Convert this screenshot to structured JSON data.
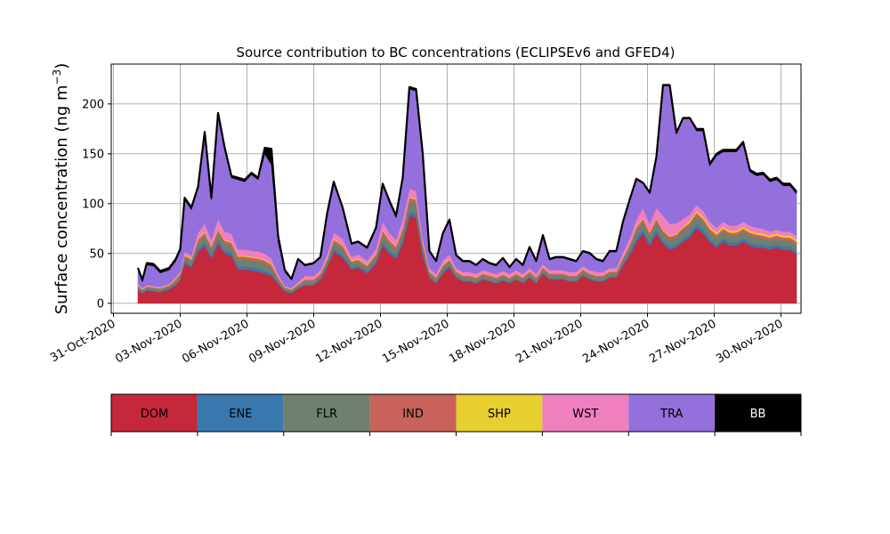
{
  "chart_data": {
    "type": "area",
    "title": "Source contribution to BC concentrations (ECLIPSEv6 and GFED4)",
    "ylabel": "Surface concentration (ng m",
    "ylabel_sup": "−3",
    "ylabel_close": ")",
    "xlabel": "",
    "ylim": [
      -10,
      240
    ],
    "xlim": [
      -0.1,
      30.9
    ],
    "grid": true,
    "yticks": [
      0,
      50,
      100,
      150,
      200
    ],
    "xticks": [
      {
        "pos": 0,
        "label": "31-Oct-2020"
      },
      {
        "pos": 3,
        "label": "03-Nov-2020"
      },
      {
        "pos": 6,
        "label": "06-Nov-2020"
      },
      {
        "pos": 9,
        "label": "09-Nov-2020"
      },
      {
        "pos": 12,
        "label": "12-Nov-2020"
      },
      {
        "pos": 15,
        "label": "15-Nov-2020"
      },
      {
        "pos": 18,
        "label": "18-Nov-2020"
      },
      {
        "pos": 21,
        "label": "21-Nov-2020"
      },
      {
        "pos": 24,
        "label": "24-Nov-2020"
      },
      {
        "pos": 27,
        "label": "27-Nov-2020"
      },
      {
        "pos": 30,
        "label": "30-Nov-2020"
      }
    ],
    "x": [
      1.1,
      1.3,
      1.5,
      1.8,
      2.1,
      2.5,
      2.8,
      3.0,
      3.2,
      3.5,
      3.8,
      4.1,
      4.4,
      4.7,
      5.0,
      5.3,
      5.6,
      5.9,
      6.2,
      6.5,
      6.8,
      7.1,
      7.4,
      7.7,
      8.0,
      8.3,
      8.6,
      9.0,
      9.3,
      9.6,
      9.9,
      10.3,
      10.7,
      11.0,
      11.4,
      11.8,
      12.1,
      12.4,
      12.7,
      13.0,
      13.3,
      13.6,
      13.9,
      14.2,
      14.5,
      14.8,
      15.1,
      15.4,
      15.7,
      16.0,
      16.3,
      16.6,
      16.9,
      17.2,
      17.5,
      17.8,
      18.1,
      18.4,
      18.7,
      19.0,
      19.3,
      19.6,
      19.9,
      20.2,
      20.5,
      20.8,
      21.1,
      21.4,
      21.7,
      22.0,
      22.3,
      22.6,
      22.9,
      23.2,
      23.5,
      23.8,
      24.1,
      24.4,
      24.7,
      25.0,
      25.3,
      25.6,
      25.9,
      26.2,
      26.5,
      26.8,
      27.1,
      27.4,
      27.7,
      28.0,
      28.3,
      28.6,
      28.9,
      29.2,
      29.5,
      29.8,
      30.1,
      30.4,
      30.7
    ],
    "series": [
      {
        "name": "DOM",
        "color": "#c4283a",
        "text_color": "#000000",
        "values": [
          14,
          10,
          13,
          12,
          11,
          14,
          18,
          24,
          40,
          36,
          52,
          58,
          45,
          60,
          50,
          48,
          34,
          34,
          33,
          32,
          30,
          28,
          20,
          12,
          10,
          15,
          18,
          18,
          24,
          36,
          52,
          46,
          34,
          36,
          30,
          40,
          58,
          50,
          45,
          60,
          88,
          86,
          48,
          26,
          20,
          30,
          36,
          26,
          22,
          22,
          20,
          24,
          22,
          20,
          23,
          20,
          24,
          20,
          26,
          20,
          30,
          24,
          24,
          24,
          22,
          22,
          28,
          24,
          22,
          22,
          26,
          26,
          38,
          48,
          62,
          70,
          58,
          70,
          60,
          54,
          56,
          62,
          66,
          76,
          70,
          62,
          56,
          62,
          58,
          58,
          62,
          58,
          56,
          56,
          54,
          56,
          54,
          54,
          50
        ]
      },
      {
        "name": "ENE",
        "color": "#3a78b0",
        "text_color": "#000000",
        "values": [
          1,
          1,
          1,
          1,
          1,
          1,
          1,
          1,
          2,
          2,
          3,
          3,
          3,
          3,
          3,
          3,
          3,
          3,
          3,
          3,
          3,
          2,
          1,
          1,
          1,
          1,
          1,
          1,
          1,
          2,
          3,
          3,
          2,
          2,
          2,
          2,
          3,
          3,
          3,
          3,
          4,
          4,
          3,
          1,
          1,
          2,
          2,
          1,
          1,
          1,
          1,
          1,
          1,
          1,
          1,
          1,
          1,
          1,
          1,
          1,
          1,
          1,
          1,
          1,
          1,
          1,
          1,
          1,
          1,
          1,
          1,
          1,
          2,
          3,
          4,
          4,
          3,
          4,
          3,
          3,
          3,
          3,
          4,
          4,
          4,
          3,
          3,
          3,
          3,
          3,
          3,
          3,
          3,
          3,
          3,
          3,
          3,
          3,
          3
        ]
      },
      {
        "name": "FLR",
        "color": "#6e8070",
        "text_color": "#000000",
        "values": [
          2,
          2,
          2,
          2,
          2,
          2,
          3,
          3,
          4,
          4,
          6,
          7,
          6,
          8,
          7,
          7,
          7,
          7,
          7,
          7,
          7,
          6,
          3,
          2,
          2,
          2,
          3,
          3,
          3,
          4,
          6,
          6,
          4,
          4,
          4,
          5,
          8,
          7,
          6,
          8,
          10,
          10,
          6,
          3,
          3,
          4,
          4,
          3,
          3,
          3,
          3,
          3,
          3,
          3,
          3,
          3,
          3,
          3,
          3,
          3,
          3,
          3,
          3,
          3,
          3,
          3,
          3,
          3,
          3,
          3,
          3,
          3,
          4,
          5,
          7,
          8,
          7,
          8,
          7,
          7,
          7,
          8,
          8,
          8,
          8,
          7,
          7,
          7,
          7,
          7,
          7,
          7,
          7,
          6,
          6,
          6,
          6,
          6,
          6
        ]
      },
      {
        "name": "IND",
        "color": "#c8625a",
        "text_color": "#000000",
        "values": [
          1,
          1,
          1,
          1,
          1,
          1,
          2,
          2,
          2,
          2,
          3,
          3,
          3,
          3,
          3,
          3,
          3,
          3,
          3,
          3,
          3,
          3,
          2,
          1,
          1,
          1,
          2,
          2,
          2,
          2,
          3,
          3,
          2,
          2,
          2,
          2,
          4,
          3,
          3,
          4,
          4,
          4,
          3,
          2,
          2,
          2,
          2,
          2,
          2,
          2,
          2,
          2,
          2,
          2,
          2,
          2,
          2,
          2,
          2,
          2,
          2,
          2,
          2,
          2,
          2,
          2,
          2,
          2,
          2,
          2,
          2,
          2,
          2,
          3,
          3,
          3,
          3,
          3,
          3,
          3,
          3,
          3,
          3,
          3,
          3,
          3,
          3,
          3,
          3,
          3,
          3,
          3,
          3,
          3,
          3,
          3,
          3,
          3,
          3
        ]
      },
      {
        "name": "SHP",
        "color": "#e6cf2e",
        "text_color": "#000000",
        "values": [
          0.5,
          0.5,
          0.5,
          0.5,
          0.5,
          0.5,
          0.5,
          0.5,
          1,
          1,
          1,
          1,
          1,
          1,
          1,
          1,
          1,
          1,
          1,
          1,
          1,
          1,
          0.5,
          0.5,
          0.5,
          0.5,
          0.5,
          0.5,
          0.5,
          1,
          1,
          1,
          1,
          1,
          1,
          1,
          1,
          1,
          1,
          1,
          1,
          1,
          1,
          0.5,
          0.5,
          1,
          1,
          0.5,
          0.5,
          0.5,
          0.5,
          0.5,
          0.5,
          0.5,
          0.5,
          0.5,
          0.5,
          0.5,
          0.5,
          0.5,
          0.5,
          0.5,
          0.5,
          0.5,
          0.5,
          0.5,
          0.5,
          0.5,
          0.5,
          0.5,
          0.5,
          0.5,
          1,
          1,
          1,
          1,
          1,
          1,
          1,
          1,
          1,
          1,
          2,
          2,
          2,
          2,
          2,
          2,
          2,
          2,
          2,
          2,
          2,
          2,
          2,
          2,
          2,
          2,
          2
        ]
      },
      {
        "name": "WST",
        "color": "#f07fbf",
        "text_color": "#000000",
        "values": [
          1,
          1,
          1,
          1,
          1,
          1,
          2,
          2,
          3,
          3,
          6,
          8,
          6,
          10,
          8,
          8,
          6,
          6,
          6,
          6,
          6,
          5,
          3,
          1,
          1,
          2,
          3,
          3,
          3,
          4,
          6,
          6,
          4,
          4,
          4,
          5,
          8,
          7,
          6,
          8,
          8,
          8,
          5,
          3,
          3,
          4,
          4,
          3,
          3,
          3,
          3,
          3,
          3,
          3,
          3,
          3,
          3,
          3,
          3,
          3,
          3,
          3,
          3,
          3,
          3,
          3,
          3,
          3,
          3,
          3,
          3,
          3,
          4,
          5,
          7,
          10,
          8,
          10,
          14,
          12,
          10,
          8,
          6,
          6,
          6,
          5,
          5,
          5,
          5,
          5,
          5,
          5,
          5,
          5,
          4,
          4,
          4,
          4,
          4
        ]
      },
      {
        "name": "TRA",
        "color": "#9370db",
        "text_color": "#000000",
        "values": [
          14,
          6,
          20,
          20,
          14,
          14,
          16,
          20,
          52,
          46,
          44,
          90,
          40,
          104,
          82,
          56,
          70,
          68,
          76,
          72,
          100,
          94,
          32,
          14,
          8,
          22,
          10,
          12,
          12,
          40,
          50,
          30,
          12,
          12,
          12,
          20,
          36,
          30,
          22,
          40,
          100,
          100,
          82,
          16,
          12,
          26,
          34,
          12,
          10,
          10,
          8,
          10,
          8,
          8,
          12,
          6,
          10,
          8,
          20,
          12,
          28,
          10,
          12,
          12,
          12,
          10,
          14,
          16,
          12,
          10,
          16,
          16,
          30,
          38,
          40,
          24,
          30,
          50,
          130,
          138,
          90,
          100,
          96,
          74,
          80,
          56,
          72,
          70,
          74,
          74,
          78,
          54,
          52,
          54,
          50,
          50,
          46,
          46,
          42
        ]
      },
      {
        "name": "BB",
        "color": "#000000",
        "text_color": "#ffffff",
        "values": [
          2,
          2,
          2,
          2,
          2,
          2,
          2,
          2,
          2,
          2,
          2,
          2,
          2,
          2,
          2,
          2,
          2,
          2,
          2,
          2,
          6,
          16,
          6,
          2,
          1,
          1,
          1,
          1,
          1,
          1,
          1,
          1,
          1,
          1,
          1,
          1,
          2,
          2,
          2,
          2,
          2,
          2,
          2,
          1,
          1,
          1,
          1,
          1,
          1,
          1,
          1,
          1,
          1,
          1,
          1,
          1,
          1,
          1,
          1,
          1,
          1,
          1,
          1,
          1,
          1,
          1,
          1,
          1,
          1,
          1,
          1,
          1,
          1,
          1,
          1,
          1,
          1,
          1,
          1,
          1,
          1,
          1,
          1,
          2,
          2,
          2,
          2,
          2,
          2,
          2,
          2,
          2,
          2,
          2,
          2,
          2,
          2,
          2,
          2
        ]
      }
    ],
    "legend": "bottom, colorbar style"
  }
}
